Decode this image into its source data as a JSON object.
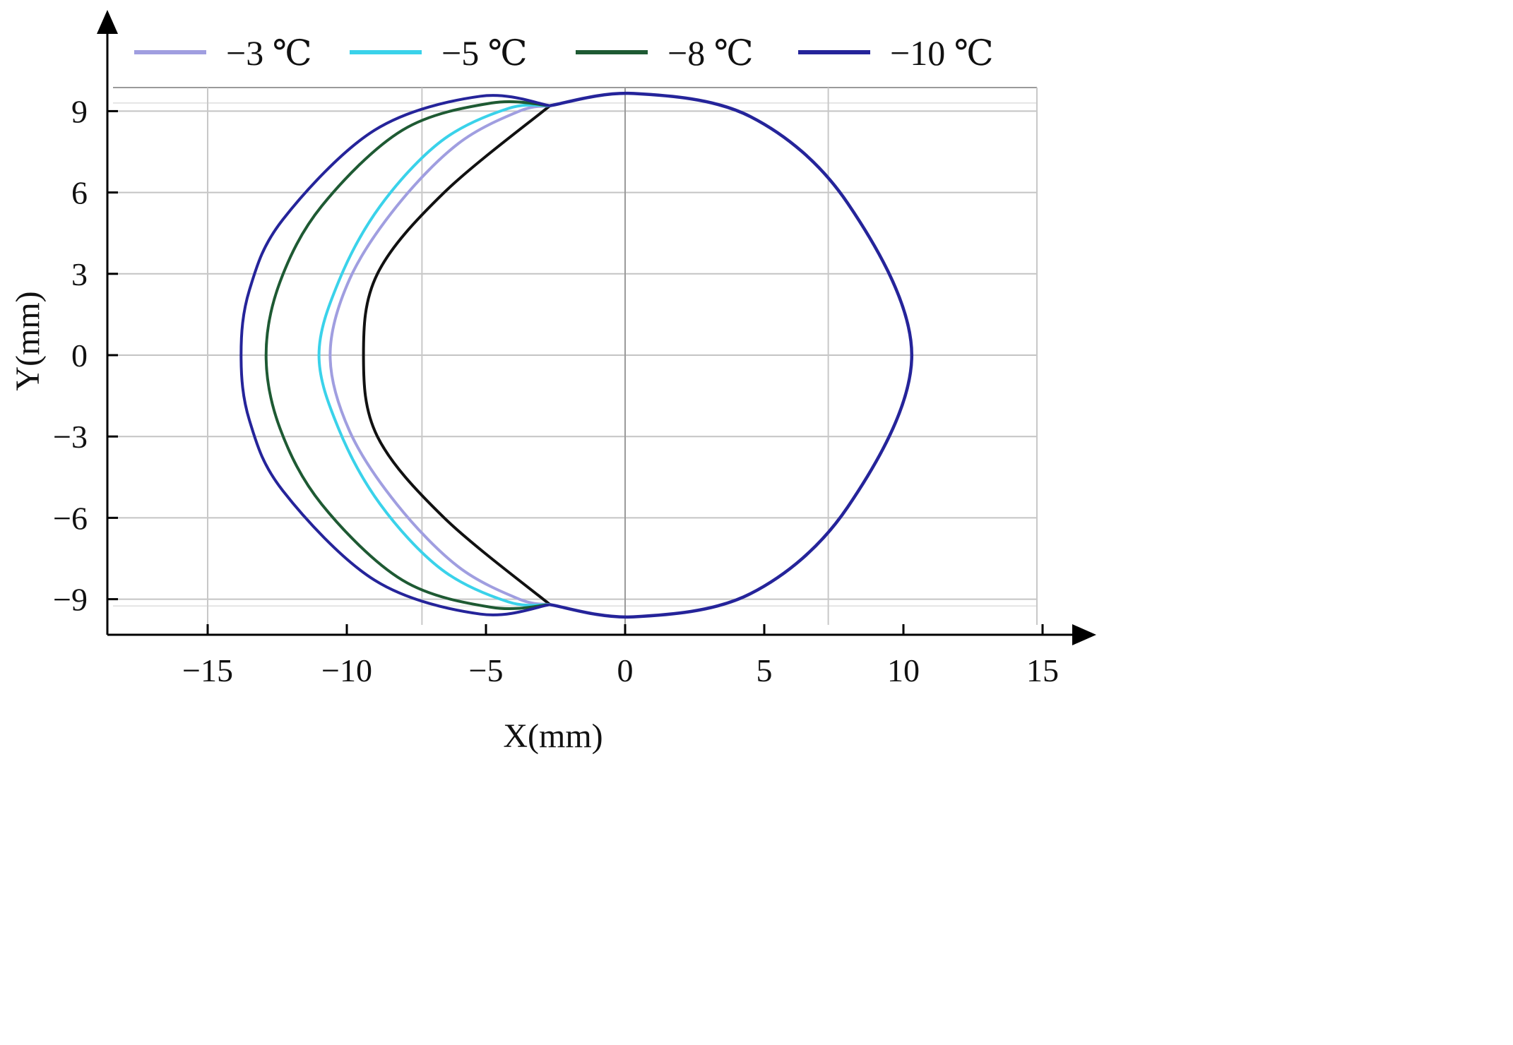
{
  "chart_data": {
    "type": "line",
    "title": "",
    "xlabel": "X(mm)",
    "ylabel": "Y(mm)",
    "xlim": [
      -18.5,
      15
    ],
    "ylim": [
      -10.5,
      10.2
    ],
    "x_ticks": [
      -15,
      -10,
      -5,
      0,
      5,
      10,
      15
    ],
    "x_tick_labels": [
      "−15",
      "−10",
      "−5",
      "0",
      "5",
      "10",
      "15"
    ],
    "y_ticks": [
      9,
      6,
      3,
      0,
      -3,
      -6,
      -9
    ],
    "y_tick_labels": [
      "9",
      "6",
      "3",
      "0",
      "−3",
      "−6",
      "−9"
    ],
    "grid": true,
    "legend_position": "top",
    "reference_contour": {
      "description_note": "",
      "color": "#111111",
      "right_arc": {
        "x": [
          -2.7,
          0.3,
          4.5,
          8.0,
          10.3,
          8.0,
          4.5,
          0.3,
          -2.7
        ],
        "y": [
          9.2,
          9.65,
          8.8,
          5.6,
          0,
          -5.6,
          -8.8,
          -9.65,
          -9.2
        ]
      },
      "left_arc": {
        "x": [
          -2.7,
          -6.5,
          -8.9,
          -9.4,
          -8.9,
          -6.5,
          -2.7
        ],
        "y": [
          9.2,
          6.0,
          3.0,
          0,
          -3.0,
          -6.0,
          -9.2
        ]
      }
    },
    "series": [
      {
        "name": "−3 ℃",
        "color": "#a09ee0",
        "x": [
          -2.7,
          -3.8,
          -6.0,
          -8.2,
          -9.9,
          -10.6,
          -9.9,
          -8.2,
          -6.0,
          -3.8,
          -2.7
        ],
        "y": [
          9.2,
          9.0,
          7.8,
          5.5,
          2.8,
          0,
          -2.8,
          -5.5,
          -7.8,
          -9.0,
          -9.2
        ]
      },
      {
        "name": "−5 ℃",
        "color": "#3ad2ea",
        "x": [
          -2.7,
          -4.2,
          -6.6,
          -8.8,
          -10.3,
          -11.0,
          -10.3,
          -8.8,
          -6.6,
          -4.2,
          -2.7
        ],
        "y": [
          9.2,
          9.1,
          7.9,
          5.5,
          2.7,
          0,
          -2.7,
          -5.5,
          -7.9,
          -9.1,
          -9.2
        ]
      },
      {
        "name": "−8 ℃",
        "color": "#1e5a33",
        "x": [
          -2.7,
          -4.8,
          -8.0,
          -10.9,
          -12.4,
          -12.9,
          -12.4,
          -10.9,
          -8.0,
          -4.8,
          -2.7
        ],
        "y": [
          9.2,
          9.3,
          8.3,
          5.5,
          2.7,
          0,
          -2.7,
          -5.5,
          -8.3,
          -9.3,
          -9.2
        ]
      },
      {
        "name": "−10 ℃",
        "color": "#25249a",
        "x": [
          -2.7,
          -5.2,
          -9.0,
          -12.3,
          -13.5,
          -13.8,
          -13.5,
          -12.3,
          -9.0,
          -5.2,
          -2.7
        ],
        "y": [
          9.2,
          9.55,
          8.3,
          5.0,
          2.4,
          0,
          -2.4,
          -5.0,
          -8.3,
          -9.55,
          -9.2
        ],
        "closing_arc": {
          "x": [
            -2.7,
            0.3,
            4.5,
            8.0,
            10.3,
            8.0,
            4.5,
            0.3,
            -2.7
          ],
          "y": [
            9.2,
            9.65,
            8.8,
            5.6,
            0,
            -5.6,
            -8.8,
            -9.65,
            -9.2
          ]
        }
      }
    ]
  }
}
